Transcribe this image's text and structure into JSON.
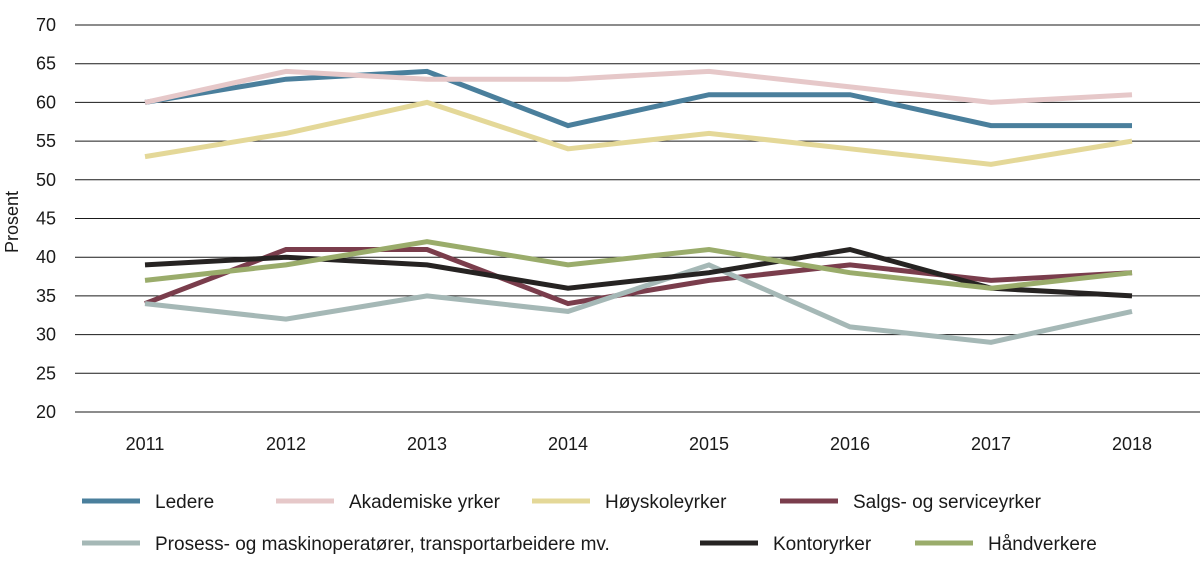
{
  "chart_data": {
    "type": "line",
    "title": "",
    "xlabel": "",
    "ylabel": "Prosent",
    "ylim": [
      20,
      70
    ],
    "yticks": [
      20,
      25,
      30,
      35,
      40,
      45,
      50,
      55,
      60,
      65,
      70
    ],
    "categories": [
      "2011",
      "2012",
      "2013",
      "2014",
      "2015",
      "2016",
      "2017",
      "2018"
    ],
    "grid": "horizontal",
    "legend_position": "bottom",
    "series": [
      {
        "name": "Ledere",
        "color": "#4a7f9c",
        "values": [
          60,
          63,
          64,
          57,
          61,
          61,
          57,
          57
        ]
      },
      {
        "name": "Akademiske yrker",
        "color": "#e6c8c9",
        "values": [
          60,
          64,
          63,
          63,
          64,
          62,
          60,
          61
        ]
      },
      {
        "name": "Høyskoleyrker",
        "color": "#e4d898",
        "values": [
          53,
          56,
          60,
          54,
          56,
          54,
          52,
          55
        ]
      },
      {
        "name": "Salgs- og serviceyrker",
        "color": "#7a3d4c",
        "values": [
          34,
          41,
          41,
          34,
          37,
          39,
          37,
          38
        ]
      },
      {
        "name": "Prosess- og maskinoperatører, transportarbeidere mv.",
        "color": "#a5b8b6",
        "values": [
          34,
          32,
          35,
          33,
          39,
          31,
          29,
          33
        ]
      },
      {
        "name": "Kontoryrker",
        "color": "#262322",
        "values": [
          39,
          40,
          39,
          36,
          38,
          41,
          36,
          35
        ]
      },
      {
        "name": "Håndverkere",
        "color": "#9aac6b",
        "values": [
          37,
          39,
          42,
          39,
          41,
          38,
          36,
          38
        ]
      }
    ]
  }
}
